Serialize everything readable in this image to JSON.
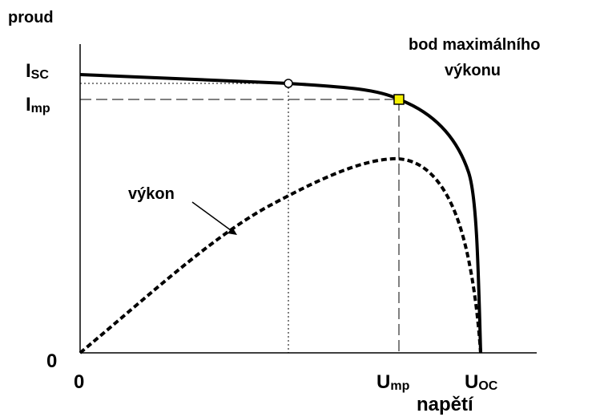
{
  "axes": {
    "y_label": "proud",
    "x_label": "napětí"
  },
  "y_ticks": [
    {
      "symbol": "I",
      "subscript": "SC"
    },
    {
      "symbol": "I",
      "subscript": "mp"
    },
    {
      "symbol": "0"
    }
  ],
  "x_ticks": [
    {
      "symbol": "0"
    },
    {
      "symbol": "U",
      "subscript": "mp"
    },
    {
      "symbol": "U",
      "subscript": "OC"
    }
  ],
  "annotations": {
    "max_point": [
      "bod maximálního",
      "výkonu"
    ],
    "power_curve": "výkon"
  }
}
